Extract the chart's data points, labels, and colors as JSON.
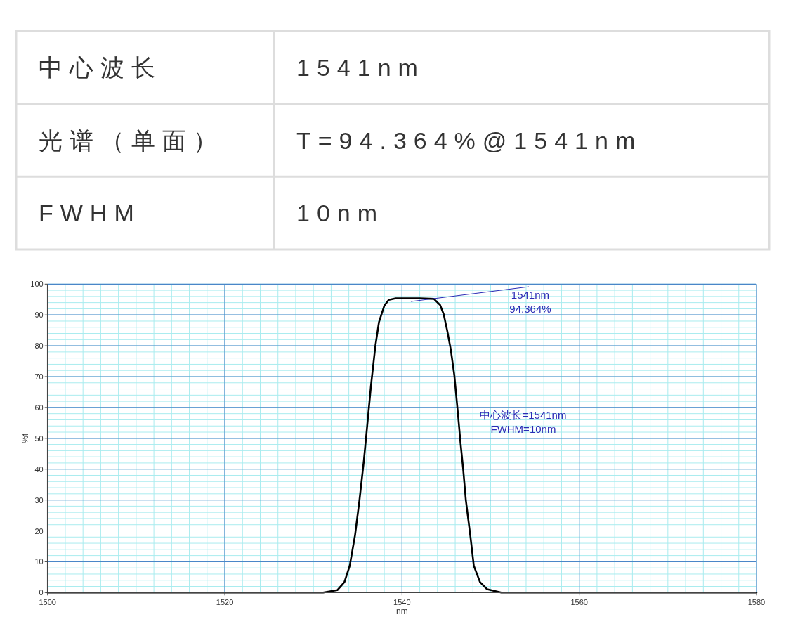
{
  "chart_data": [
    {
      "type": "other",
      "annotations": [
        "中心波长",
        "1541nm",
        "光谱（单面）",
        "T=94.364%@1541nm",
        "FWHM",
        "10nm"
      ]
    },
    {
      "type": "line",
      "xlabel": "nm",
      "ylabel": "%t",
      "x": [
        1500,
        1510,
        1520,
        1530,
        1531.1,
        1532.7,
        1533.5,
        1534.1,
        1534.7,
        1535.2,
        1535.7,
        1536.1,
        1536.5,
        1537.0,
        1537.4,
        1538.0,
        1538.5,
        1539.3,
        1541,
        1542,
        1543.6,
        1544.3,
        1544.7,
        1545.1,
        1545.5,
        1545.9,
        1546.3,
        1546.6,
        1546.9,
        1547.2,
        1547.7,
        1548.1,
        1548.8,
        1549.6,
        1551.2,
        1555,
        1560,
        1570,
        1580
      ],
      "series": [
        {
          "color": "#000000",
          "values": [
            0,
            0,
            0,
            0,
            0,
            0.8,
            3.4,
            8.7,
            18.6,
            30,
            42.9,
            55,
            67.2,
            80.1,
            87.7,
            93.0,
            94.9,
            95.4,
            95.4,
            95.4,
            95.2,
            93.2,
            90.2,
            84.9,
            78.8,
            70.5,
            58.3,
            48.5,
            40,
            30,
            18.6,
            8.7,
            3.4,
            1.1,
            0,
            0,
            0,
            0,
            0
          ]
        }
      ],
      "xlim": [
        1500,
        1580
      ],
      "ylim": [
        0,
        100
      ],
      "xticks": [
        1500,
        1520,
        1540,
        1560,
        1580
      ],
      "yticks": [
        0,
        10,
        20,
        30,
        40,
        50,
        60,
        70,
        80,
        90,
        100
      ],
      "grid": true,
      "line_style": "solid",
      "annotations": [
        {
          "text": "1541nm\n94.364%",
          "x": 1541,
          "y": 94.364
        },
        "中心波长=1541nm\nFWHM=10nm"
      ]
    }
  ]
}
